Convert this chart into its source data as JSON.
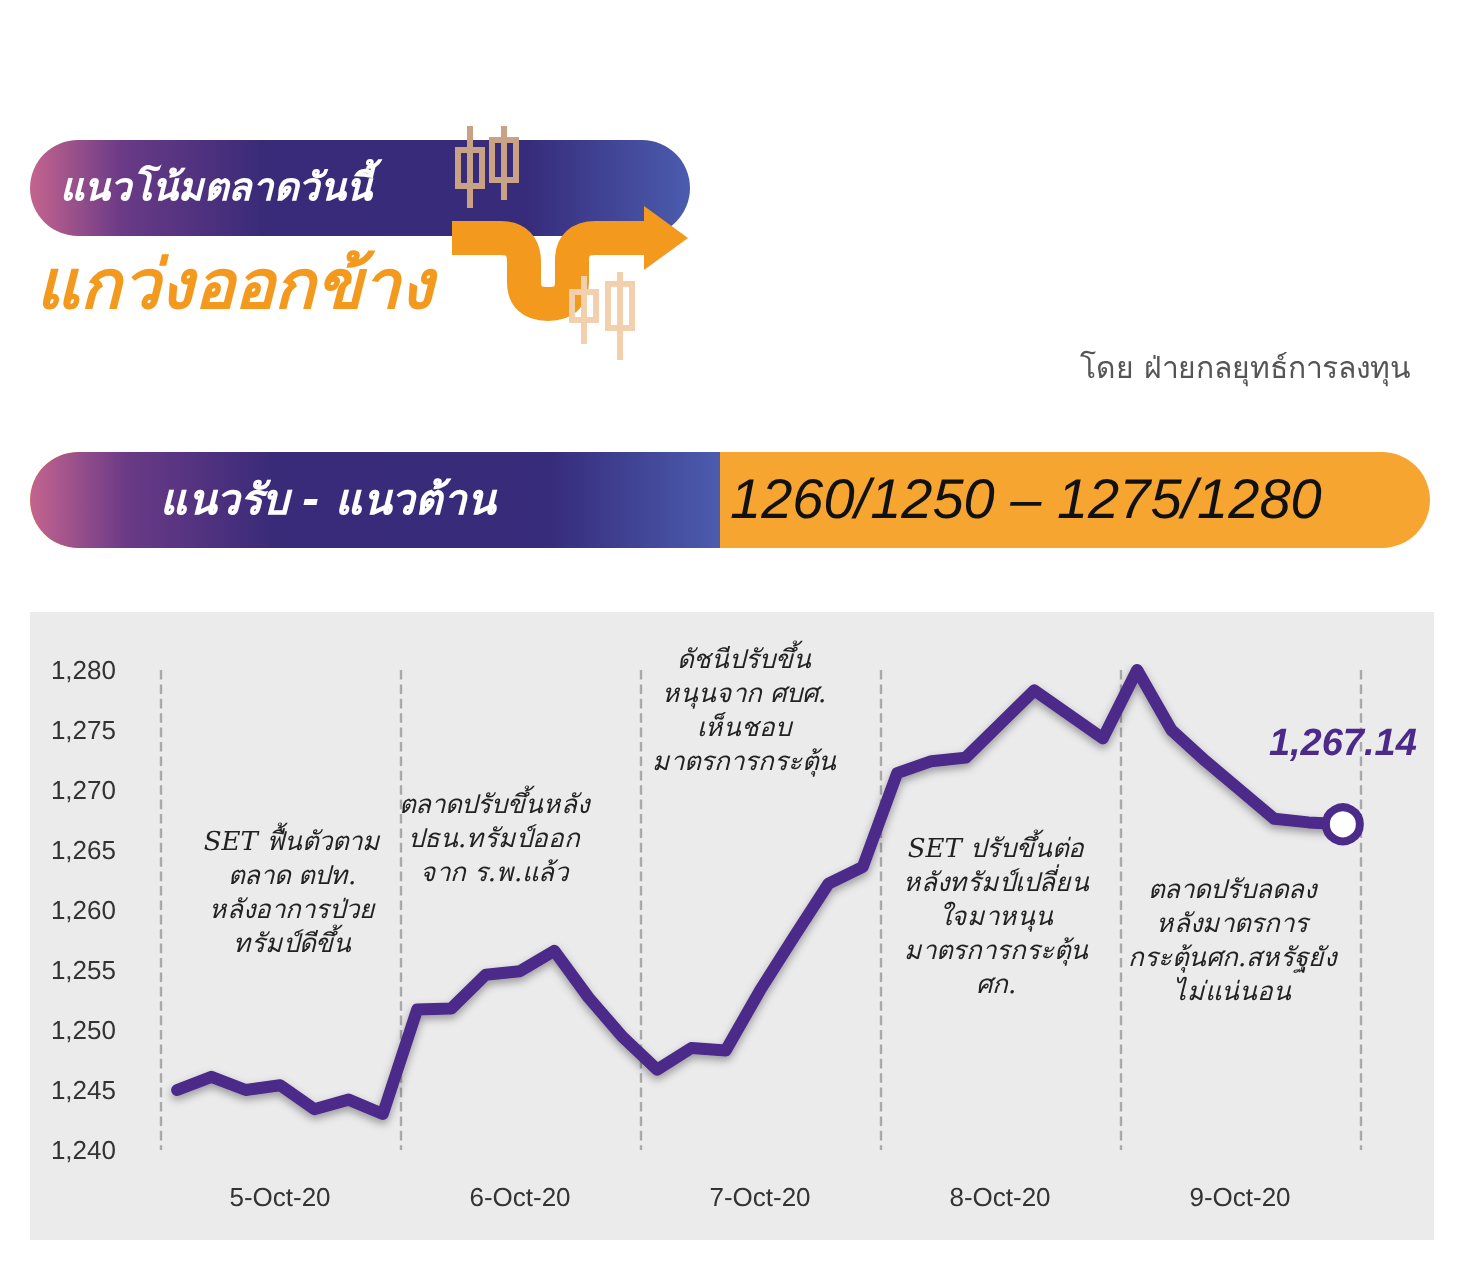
{
  "chart_data": {
    "type": "line",
    "title": "แนวโน้มตลาดวันนี้",
    "subtitle": "แกว่งออกข้าง",
    "annotations": [
      "โดย ฝ่ายกลยุทธ์การลงทุน",
      "แนวรับ - แนวต้าน",
      "1260/1250 – 1275/1280",
      "SET ฟื้นตัวตาม\nตลาด ตปท.\nหลังอาการป่วย\nทรัมป์ดีขึ้น",
      "ตลาดปรับขึ้นหลัง\nปธน.ทรัมป์ออก\nจาก ร.พ.แล้ว",
      "ดัชนีปรับขึ้น\nหนุนจาก ศบศ.\nเห็นชอบ\nมาตรการกระตุ้น",
      "SET ปรับขึ้นต่อ\nหลังทรัมป์เปลี่ยน\nใจมาหนุน\nมาตรการกระตุ้น\nศก.",
      "ตลาดปรับลดลง\nหลังมาตรการ\nกระตุ้นศก.สหรัฐยัง\nไม่แน่นอน"
    ],
    "categories": [
      null,
      null,
      null,
      "5-Oct-20",
      null,
      null,
      null,
      null,
      null,
      null,
      "6-Oct-20",
      null,
      null,
      null,
      null,
      null,
      null,
      "7-Oct-20",
      null,
      null,
      null,
      null,
      null,
      null,
      "8-Oct-20",
      null,
      null,
      null,
      null,
      null,
      null,
      "9-Oct-20",
      null,
      null,
      null
    ],
    "series": [
      {
        "color": "#4b2a8a",
        "marker": "none",
        "line_style": "solid",
        "values": [
          1245.0,
          1246.1,
          1245.0,
          1245.4,
          1243.4,
          1244.2,
          1243.0,
          1251.7,
          1251.8,
          1254.6,
          1254.9,
          1256.6,
          1252.7,
          1249.4,
          1246.7,
          1248.5,
          1248.3,
          1253.3,
          1257.8,
          1262.2,
          1263.6,
          1271.4,
          1272.4,
          1272.7,
          1275.5,
          1278.3,
          1276.3,
          1274.3,
          1280.0,
          1275.0,
          1272.4,
          1270.0,
          1267.6,
          1267.3,
          1267.14
        ]
      },
      {
        "type": "scatter",
        "color": "#4b2a8a",
        "marker": "circle",
        "values": [
          null,
          null,
          null,
          null,
          null,
          null,
          null,
          null,
          null,
          null,
          null,
          null,
          null,
          null,
          null,
          null,
          null,
          null,
          null,
          null,
          null,
          null,
          null,
          null,
          null,
          null,
          null,
          null,
          null,
          null,
          null,
          null,
          null,
          null,
          1267.14
        ],
        "value_labels": [
          null,
          null,
          null,
          null,
          null,
          null,
          null,
          null,
          null,
          null,
          null,
          null,
          null,
          null,
          null,
          null,
          null,
          null,
          null,
          null,
          null,
          null,
          null,
          null,
          null,
          null,
          null,
          null,
          null,
          null,
          null,
          null,
          null,
          null,
          "1,267.14"
        ]
      }
    ],
    "ylim": [
      1240,
      1280
    ],
    "yticks": [
      {
        "value": 1240,
        "label": "1,240"
      },
      {
        "value": 1245,
        "label": "1,245"
      },
      {
        "value": 1250,
        "label": "1,250"
      },
      {
        "value": 1255,
        "label": "1,255"
      },
      {
        "value": 1260,
        "label": "1,260"
      },
      {
        "value": 1265,
        "label": "1,265"
      },
      {
        "value": 1270,
        "label": "1,270"
      },
      {
        "value": 1275,
        "label": "1,275"
      },
      {
        "value": 1280,
        "label": "1,280"
      }
    ],
    "grid": "x"
  }
}
